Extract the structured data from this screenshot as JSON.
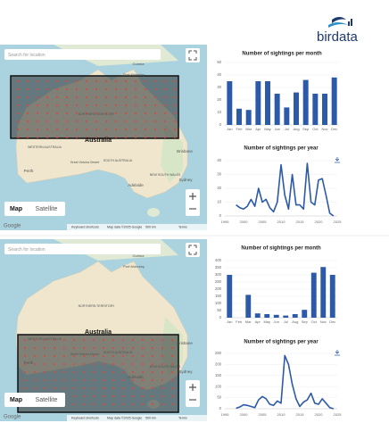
{
  "logo": "birdata",
  "maps": [
    {
      "search": "Search for location",
      "places": [
        "Guinea",
        "Port Moresby",
        "NORTHERN TERRITORY",
        "Australia",
        "WESTERN AUSTRALIA",
        "SOUTH AUSTRALIA",
        "Great Victoria Desert",
        "Perth",
        "Adelaide",
        "Brisbane",
        "Sydney",
        "NEW SOUTH WALES"
      ],
      "map_button": "Map",
      "satellite_button": "Satellite",
      "footer": [
        "Keyboard shortcuts",
        "Map data ©2025 Google",
        "500 km",
        "Terms"
      ],
      "google": "Google"
    },
    {
      "search": "Search for location",
      "places": [
        "Guinea",
        "Port Moresby",
        "NORTHERN TERRITORY",
        "Australia",
        "WESTERN AUSTRALIA",
        "SOUTH AUSTRALIA",
        "Great Victoria Desert",
        "Perth",
        "Adelaide",
        "Brisbane",
        "Sydney",
        "NEW SOUTH WALES"
      ],
      "map_button": "Map",
      "satellite_button": "Satellite",
      "footer": [
        "Keyboard shortcuts",
        "Map data ©2025 Google",
        "500 km",
        "Terms"
      ],
      "google": "Google"
    }
  ],
  "chart_data": [
    {
      "type": "bar",
      "title": "Number of sightings per month",
      "color": "#2c5aa8",
      "categories": [
        "Jan",
        "Feb",
        "Mar",
        "Apr",
        "May",
        "Jun",
        "Jul",
        "Aug",
        "Sep",
        "Oct",
        "Nov",
        "Dec"
      ],
      "values": [
        35,
        13,
        12,
        35,
        35,
        25,
        14,
        26,
        36,
        25,
        25,
        38
      ],
      "ylim": [
        0,
        50
      ],
      "yticks": [
        0,
        10,
        20,
        30,
        40,
        50
      ],
      "grid": true
    },
    {
      "type": "line",
      "title": "Number of sightings per year",
      "color": "#2c5aa8",
      "x": [
        1998,
        1999,
        2000,
        2001,
        2002,
        2003,
        2004,
        2005,
        2006,
        2007,
        2008,
        2009,
        2010,
        2011,
        2012,
        2013,
        2014,
        2015,
        2016,
        2017,
        2018,
        2019,
        2020,
        2021,
        2022,
        2023,
        2024
      ],
      "values": [
        8,
        6,
        5,
        7,
        12,
        7,
        20,
        10,
        12,
        6,
        3,
        10,
        37,
        15,
        5,
        30,
        8,
        8,
        5,
        38,
        10,
        8,
        26,
        27,
        15,
        2,
        0
      ],
      "xlim": [
        1995,
        2025
      ],
      "xticks": [
        1995,
        2000,
        2005,
        2010,
        2015,
        2020,
        2025
      ],
      "ylim": [
        0,
        40
      ],
      "yticks": [
        0,
        10,
        20,
        30,
        40
      ],
      "grid": true
    },
    {
      "type": "bar",
      "title": "Number of sightings per month",
      "color": "#2c5aa8",
      "categories": [
        "Jan",
        "Feb",
        "Mar",
        "Apr",
        "May",
        "Jun",
        "Jul",
        "Aug",
        "Sep",
        "Oct",
        "Nov",
        "Dec"
      ],
      "values": [
        300,
        0,
        160,
        30,
        25,
        20,
        15,
        25,
        55,
        315,
        355,
        300
      ],
      "ylim": [
        0,
        400
      ],
      "yticks": [
        0,
        50,
        100,
        150,
        200,
        250,
        300,
        350,
        400
      ],
      "grid": true
    },
    {
      "type": "line",
      "title": "Number of sightings per year",
      "color": "#2c5aa8",
      "x": [
        1998,
        1999,
        2000,
        2001,
        2002,
        2003,
        2004,
        2005,
        2006,
        2007,
        2008,
        2009,
        2010,
        2011,
        2012,
        2013,
        2014,
        2015,
        2016,
        2017,
        2018,
        2019,
        2020,
        2021,
        2022,
        2023,
        2024
      ],
      "values": [
        2,
        8,
        18,
        15,
        10,
        5,
        40,
        55,
        45,
        20,
        15,
        35,
        25,
        240,
        200,
        110,
        45,
        10,
        30,
        40,
        70,
        25,
        20,
        45,
        25,
        5,
        0
      ],
      "xlim": [
        1995,
        2025
      ],
      "xticks": [
        1995,
        2000,
        2005,
        2010,
        2015,
        2020,
        2025
      ],
      "ylim": [
        0,
        250
      ],
      "yticks": [
        0,
        50,
        100,
        150,
        200,
        250
      ],
      "grid": true
    }
  ]
}
